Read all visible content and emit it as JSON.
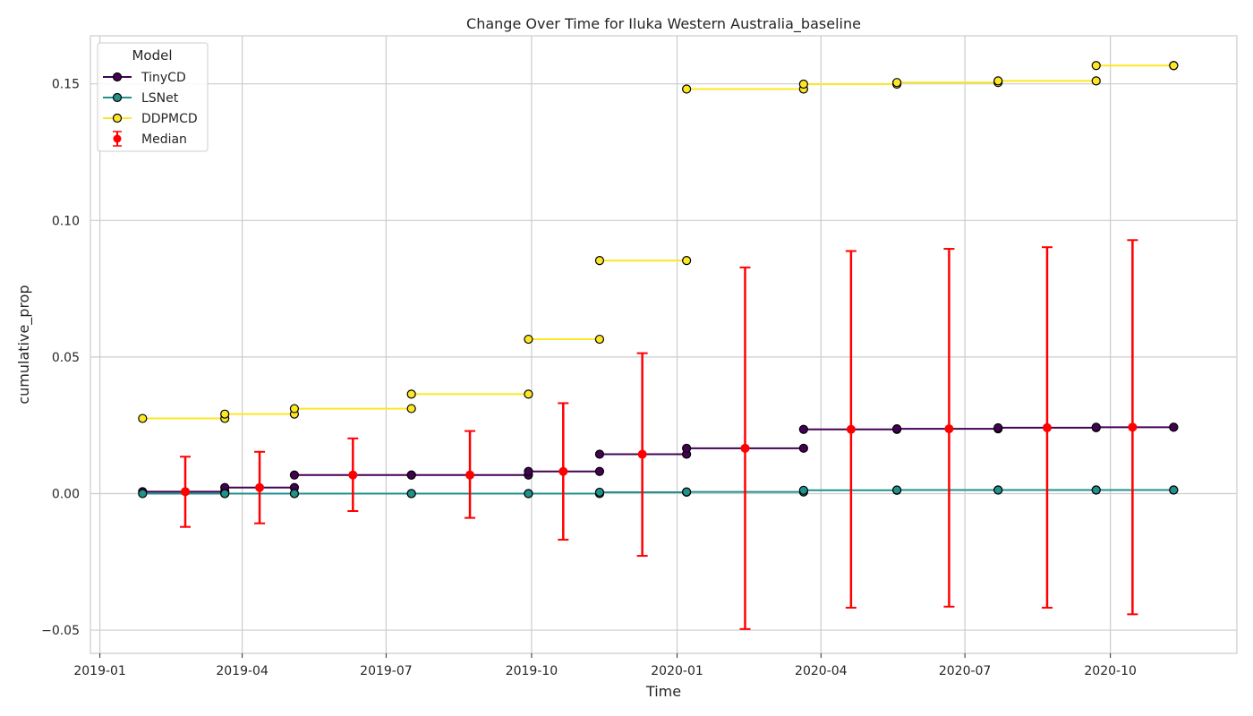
{
  "chart_data": {
    "type": "line",
    "title": "Change Over Time for Iluka Western Australia_baseline",
    "xlabel": "Time",
    "ylabel": "cumulative_prop",
    "x_ticks": [
      "2019-01",
      "2019-04",
      "2019-07",
      "2019-10",
      "2020-01",
      "2020-04",
      "2020-07",
      "2020-10"
    ],
    "x_range": [
      "2018-12-26",
      "2020-12-20"
    ],
    "y_ticks": [
      "−0.05",
      "0.00",
      "0.05",
      "0.10",
      "0.15"
    ],
    "y_tick_values": [
      -0.05,
      0.0,
      0.05,
      0.1,
      0.15
    ],
    "ylim": [
      -0.0585,
      0.1676
    ],
    "grid": true,
    "legend": {
      "title": "Model",
      "placement": "top-left",
      "entries": [
        "TinyCD",
        "LSNet",
        "DDPMCD",
        "Median"
      ]
    },
    "series": [
      {
        "name": "TinyCD",
        "color": "#440154",
        "style": "step",
        "points": [
          {
            "x": "2019-01-28",
            "y": 0.0007
          },
          {
            "x": "2019-03-21",
            "y": 0.0022
          },
          {
            "x": "2019-05-04",
            "y": 0.0068
          },
          {
            "x": "2019-07-17",
            "y": 0.0068
          },
          {
            "x": "2019-09-29",
            "y": 0.0081
          },
          {
            "x": "2019-11-13",
            "y": 0.0144
          },
          {
            "x": "2020-01-07",
            "y": 0.0166
          },
          {
            "x": "2020-03-21",
            "y": 0.0235
          },
          {
            "x": "2020-05-19",
            "y": 0.0237
          },
          {
            "x": "2020-07-22",
            "y": 0.0241
          },
          {
            "x": "2020-09-22",
            "y": 0.0243
          },
          {
            "x": "2020-11-10",
            "y": 0.0243
          }
        ]
      },
      {
        "name": "LSNet",
        "color": "#21918c",
        "style": "step",
        "points": [
          {
            "x": "2019-01-28",
            "y": 0.0
          },
          {
            "x": "2019-03-21",
            "y": 0.0
          },
          {
            "x": "2019-05-04",
            "y": 0.0
          },
          {
            "x": "2019-07-17",
            "y": 0.0
          },
          {
            "x": "2019-09-29",
            "y": 0.0
          },
          {
            "x": "2019-11-13",
            "y": 0.0005
          },
          {
            "x": "2020-01-07",
            "y": 0.0006
          },
          {
            "x": "2020-03-21",
            "y": 0.0012
          },
          {
            "x": "2020-05-19",
            "y": 0.0013
          },
          {
            "x": "2020-07-22",
            "y": 0.0013
          },
          {
            "x": "2020-09-22",
            "y": 0.0013
          },
          {
            "x": "2020-11-10",
            "y": 0.0013
          }
        ]
      },
      {
        "name": "DDPMCD",
        "color": "#fde725",
        "style": "step",
        "points": [
          {
            "x": "2019-01-28",
            "y": 0.0275
          },
          {
            "x": "2019-03-21",
            "y": 0.0291
          },
          {
            "x": "2019-05-04",
            "y": 0.0311
          },
          {
            "x": "2019-07-17",
            "y": 0.0364
          },
          {
            "x": "2019-09-29",
            "y": 0.0565
          },
          {
            "x": "2019-11-13",
            "y": 0.0853
          },
          {
            "x": "2020-01-07",
            "y": 0.1481
          },
          {
            "x": "2020-03-21",
            "y": 0.1499
          },
          {
            "x": "2020-05-19",
            "y": 0.1505
          },
          {
            "x": "2020-07-22",
            "y": 0.1511
          },
          {
            "x": "2020-09-22",
            "y": 0.1567
          },
          {
            "x": "2020-11-10",
            "y": 0.1567
          }
        ]
      }
    ],
    "median": {
      "name": "Median",
      "color": "#ff0000",
      "points": [
        {
          "x": "2019-02-24",
          "y": 0.0007,
          "low": -0.0122,
          "high": 0.0135
        },
        {
          "x": "2019-04-12",
          "y": 0.0022,
          "low": -0.0109,
          "high": 0.0153
        },
        {
          "x": "2019-06-10",
          "y": 0.0068,
          "low": -0.0064,
          "high": 0.0202
        },
        {
          "x": "2019-08-23",
          "y": 0.0068,
          "low": -0.0089,
          "high": 0.0229
        },
        {
          "x": "2019-10-21",
          "y": 0.0081,
          "low": -0.0169,
          "high": 0.0331
        },
        {
          "x": "2019-12-10",
          "y": 0.0144,
          "low": -0.0228,
          "high": 0.0514
        },
        {
          "x": "2020-02-13",
          "y": 0.0166,
          "low": -0.0496,
          "high": 0.0828
        },
        {
          "x": "2020-04-20",
          "y": 0.0235,
          "low": -0.0418,
          "high": 0.0888
        },
        {
          "x": "2020-06-21",
          "y": 0.0237,
          "low": -0.0414,
          "high": 0.0896
        },
        {
          "x": "2020-08-22",
          "y": 0.0241,
          "low": -0.0418,
          "high": 0.0902
        },
        {
          "x": "2020-10-15",
          "y": 0.0243,
          "low": -0.0442,
          "high": 0.0928
        }
      ]
    }
  }
}
